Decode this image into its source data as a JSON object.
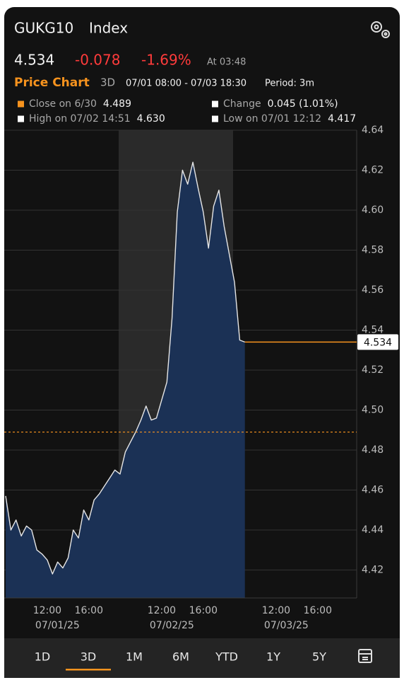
{
  "header": {
    "ticker": "GUKG10",
    "security_type": "Index",
    "price": "4.534",
    "change": "-0.078",
    "change_pct": "-1.69%",
    "time": "At 03:48"
  },
  "chart_header": {
    "title": "Price Chart",
    "range": "3D",
    "span": "07/01 08:00 - 07/03 18:30",
    "period": "Period: 3m"
  },
  "legend": [
    {
      "label": "Close on 6/30",
      "value": "4.489",
      "color": "#f7931e"
    },
    {
      "label": "Change",
      "value": "0.045 (1.01%)",
      "color": "#ffffff"
    },
    {
      "label": "High on 07/02 14:51",
      "value": "4.630",
      "color": "#ffffff"
    },
    {
      "label": "Low on 07/01 12:12",
      "value": "4.417",
      "color": "#ffffff"
    }
  ],
  "tabs": [
    "1D",
    "3D",
    "1M",
    "6M",
    "YTD",
    "1Y",
    "5Y"
  ],
  "selected_tab": 1,
  "chart_data": {
    "type": "area",
    "x": [
      "07/01/25 08:00",
      "07/01/25 08:30",
      "07/01/25 09:00",
      "07/01/25 09:30",
      "07/01/25 10:00",
      "07/01/25 10:30",
      "07/01/25 11:00",
      "07/01/25 11:30",
      "07/01/25 12:00",
      "07/01/25 12:30",
      "07/01/25 13:00",
      "07/01/25 13:30",
      "07/01/25 14:00",
      "07/01/25 14:30",
      "07/01/25 15:00",
      "07/01/25 15:30",
      "07/01/25 16:00",
      "07/01/25 16:30",
      "07/01/25 17:00",
      "07/01/25 17:30",
      "07/01/25 18:00",
      "07/01/25 18:30",
      "07/02/25 08:00",
      "07/02/25 08:30",
      "07/02/25 09:00",
      "07/02/25 09:30",
      "07/02/25 10:00",
      "07/02/25 10:30",
      "07/02/25 11:00",
      "07/02/25 11:30",
      "07/02/25 12:00",
      "07/02/25 12:30",
      "07/02/25 13:00",
      "07/02/25 13:30",
      "07/02/25 14:00",
      "07/02/25 14:30",
      "07/02/25 15:00",
      "07/02/25 15:30",
      "07/02/25 16:00",
      "07/02/25 16:30",
      "07/02/25 17:00",
      "07/02/25 17:30",
      "07/02/25 18:00",
      "07/02/25 18:30",
      "07/03/25 08:00",
      "07/03/25 08:30",
      "07/03/25 09:00",
      "07/03/25 09:30",
      "07/03/25 10:00",
      "07/03/25 10:30",
      "07/03/25 11:00",
      "07/03/25 11:30",
      "07/03/25 12:00",
      "07/03/25 12:30",
      "07/03/25 13:00",
      "07/03/25 13:30",
      "07/03/25 14:00",
      "07/03/25 14:30",
      "07/03/25 15:00",
      "07/03/25 15:30",
      "07/03/25 16:00",
      "07/03/25 16:30",
      "07/03/25 17:00",
      "07/03/25 17:30",
      "07/03/25 18:00",
      "07/03/25 18:30"
    ],
    "values": [
      4.457,
      4.44,
      4.445,
      4.437,
      4.442,
      4.44,
      4.43,
      4.428,
      4.425,
      4.418,
      4.424,
      4.421,
      4.426,
      4.44,
      4.436,
      4.45,
      4.445,
      4.455,
      4.458,
      4.462,
      4.466,
      4.47,
      4.468,
      4.479,
      4.484,
      4.489,
      4.495,
      4.502,
      4.495,
      4.496,
      4.505,
      4.514,
      4.546,
      4.599,
      4.62,
      4.613,
      4.624,
      4.611,
      4.599,
      4.581,
      4.602,
      4.61,
      4.592,
      4.578,
      4.564,
      4.535,
      4.534,
      null,
      null,
      null,
      null,
      null,
      null,
      null,
      null,
      null,
      null,
      null,
      null,
      null,
      null,
      null,
      null,
      null,
      null,
      null
    ],
    "color": "#e6e6e6",
    "fill": "#1b3155",
    "ylim": [
      4.406,
      4.64
    ],
    "yticks": [
      4.42,
      4.44,
      4.46,
      4.48,
      {
        "value": 4.5,
        "label": "4.50"
      },
      4.52,
      4.54,
      4.56,
      4.58,
      {
        "value": 4.6,
        "label": "4.60"
      },
      4.62,
      4.64
    ],
    "xticks": [
      {
        "value": "07/01/25 12:00",
        "label": "12:00"
      },
      {
        "value": "07/01/25 16:00",
        "label": "16:00"
      },
      {
        "value": "07/02/25 12:00",
        "label": "12:00"
      },
      {
        "value": "07/02/25 16:00",
        "label": "16:00"
      },
      {
        "value": "07/03/25 12:00",
        "label": "12:00"
      },
      {
        "value": "07/03/25 16:00",
        "label": "16:00"
      }
    ],
    "x_date_labels": [
      {
        "value": "07/01/25 12:00",
        "label": "07/01/25"
      },
      {
        "value": "07/02/25 12:00",
        "label": "07/02/25"
      },
      {
        "value": "07/03/25 12:00",
        "label": "07/03/25"
      }
    ],
    "last_value": 4.534,
    "last_color": "#f7931e",
    "close_value": 4.489,
    "close_color": "#f7931e",
    "grid": true
  }
}
